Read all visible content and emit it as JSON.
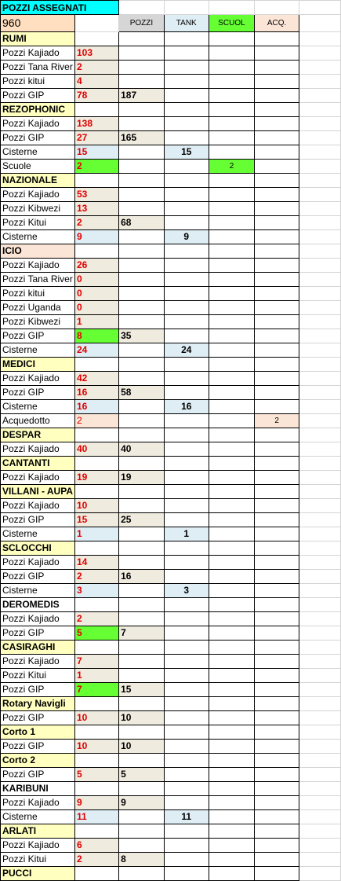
{
  "title": "POZZI ASSEGNATI",
  "total": "960",
  "colors": {
    "title_bg": "#00ffff",
    "total_bg": "#ffdfbf",
    "group_bg": "#ffffc0",
    "gray": "#d6d6d6",
    "beige": "#efebdf",
    "blue": "#deeef4",
    "green": "#66ff33",
    "peach": "#fbe5d6"
  },
  "headers": [
    "POZZI",
    "TANK",
    "SCUOL",
    "ACQ."
  ],
  "rows": [
    {
      "t": "g",
      "l": "RUMI"
    },
    {
      "l": "Pozzi Kajiado",
      "n": "103"
    },
    {
      "l": "Pozzi Tana River",
      "n": "2"
    },
    {
      "l": "Pozzi kitui",
      "n": "4"
    },
    {
      "l": "Pozzi GIP",
      "n": "78",
      "p": "187"
    },
    {
      "t": "g",
      "l": "REZOPHONIC"
    },
    {
      "l": "Pozzi Kajiado",
      "n": "138"
    },
    {
      "l": "Pozzi GIP",
      "n": "27",
      "p": "165"
    },
    {
      "l": "Cisterne",
      "n": "15",
      "k": "15",
      "nb": "blue"
    },
    {
      "l": "Scuole",
      "n": "2",
      "s": "2",
      "nb": "green"
    },
    {
      "t": "g",
      "l": "NAZIONALE"
    },
    {
      "l": "Pozzi Kajiado",
      "n": "53"
    },
    {
      "l": "Pozzi Kibwezi",
      "n": "13"
    },
    {
      "l": "Pozzi Kitui",
      "n": "2",
      "p": "68"
    },
    {
      "l": "Cisterne",
      "n": "9",
      "k": "9",
      "nb": "blue"
    },
    {
      "t": "g",
      "l": "ICIO",
      "gb": "peach"
    },
    {
      "l": "Pozzi Kajiado",
      "n": "26"
    },
    {
      "l": "Pozzi Tana River",
      "n": "0"
    },
    {
      "l": "Pozzi kitui",
      "n": "0"
    },
    {
      "l": "Pozzi Uganda",
      "n": "0"
    },
    {
      "l": "Pozzi Kibwezi",
      "n": "1"
    },
    {
      "l": "Pozzi GIP",
      "n": "8",
      "p": "35",
      "nb": "green"
    },
    {
      "l": "Cisterne",
      "n": "24",
      "k": "24",
      "nb": "blue"
    },
    {
      "t": "g",
      "l": "MEDICI"
    },
    {
      "l": "Pozzi Kajiado",
      "n": "42"
    },
    {
      "l": "Pozzi GIP",
      "n": "16",
      "p": "58"
    },
    {
      "l": "Cisterne",
      "n": "16",
      "k": "16",
      "nb": "blue"
    },
    {
      "l": "Acquedotto",
      "n": "2",
      "a": "2",
      "nb": "peach",
      "nn": true
    },
    {
      "t": "g",
      "l": "DESPAR"
    },
    {
      "l": "Pozzi Kajiado",
      "n": "40",
      "p": "40"
    },
    {
      "t": "g",
      "l": "CANTANTI"
    },
    {
      "l": "Pozzi Kajiado",
      "n": "19",
      "p": "19"
    },
    {
      "t": "g",
      "l": "VILLANI - AUPA"
    },
    {
      "l": "Pozzi Kajiado",
      "n": "10"
    },
    {
      "l": "Pozzi GIP",
      "n": "15",
      "p": "25"
    },
    {
      "l": "Cisterne",
      "n": "1",
      "k": "1",
      "nb": "blue"
    },
    {
      "t": "g",
      "l": "SCLOCCHI"
    },
    {
      "l": "Pozzi Kajiado",
      "n": "14"
    },
    {
      "l": "Pozzi GIP",
      "n": "2",
      "p": "16"
    },
    {
      "l": "Cisterne",
      "n": "3",
      "k": "3",
      "nb": "blue"
    },
    {
      "t": "g",
      "l": "DEROMEDIS",
      "gb": "white"
    },
    {
      "l": "Pozzi Kajiado",
      "n": "2"
    },
    {
      "l": "Pozzi GIP",
      "n": "5",
      "p": "7",
      "nb": "green"
    },
    {
      "t": "g",
      "l": "CASIRAGHI"
    },
    {
      "l": "Pozzi Kajiado",
      "n": "7"
    },
    {
      "l": "Pozzi Kitui",
      "n": "1"
    },
    {
      "l": "Pozzi GIP",
      "n": "7",
      "p": "15",
      "nb": "green"
    },
    {
      "t": "g",
      "l": "Rotary Navigli"
    },
    {
      "l": "Pozzi GIP",
      "n": "10",
      "p": "10"
    },
    {
      "t": "g",
      "l": "Corto 1"
    },
    {
      "l": "Pozzi GIP",
      "n": "10",
      "p": "10"
    },
    {
      "t": "g",
      "l": "Corto 2"
    },
    {
      "l": "Pozzi GIP",
      "n": "5",
      "p": "5"
    },
    {
      "t": "g",
      "l": "KARIBUNI",
      "gb": "white"
    },
    {
      "l": "Pozzi Kajiado",
      "n": "9",
      "p": "9"
    },
    {
      "l": "Cisterne",
      "n": "11",
      "k": "11",
      "nb": "blue"
    },
    {
      "t": "g",
      "l": "ARLATI"
    },
    {
      "l": "Pozzi Kajiado",
      "n": "6"
    },
    {
      "l": "Pozzi Kitui",
      "n": "2",
      "p": "8"
    },
    {
      "t": "g",
      "l": "PUCCI"
    }
  ]
}
